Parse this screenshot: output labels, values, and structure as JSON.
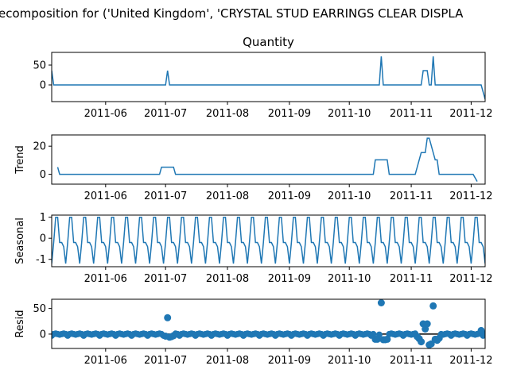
{
  "figure": {
    "suptitle": "ecomposition for ('United Kingdom', 'CRYSTAL STUD EARRINGS CLEAR DISPLA",
    "line_color": "#1f77b4",
    "zero_line_color": "#000000"
  },
  "chart_data": [
    {
      "type": "line",
      "title": "Quantity",
      "ylabel": "",
      "xlim": [
        "2011-05-05",
        "2011-12-08"
      ],
      "ylim": [
        -42,
        82
      ],
      "yticks": [
        0,
        50
      ],
      "xticks": [
        "2011-06",
        "2011-07",
        "2011-08",
        "2011-09",
        "2011-10",
        "2011-11",
        "2011-12"
      ],
      "grid": false,
      "points": [
        [
          "2011-05-05",
          36
        ],
        [
          "2011-05-06",
          0
        ],
        [
          "2011-07-01",
          0
        ],
        [
          "2011-07-02",
          36
        ],
        [
          "2011-07-03",
          0
        ],
        [
          "2011-10-16",
          0
        ],
        [
          "2011-10-17",
          72
        ],
        [
          "2011-10-18",
          0
        ],
        [
          "2011-11-06",
          0
        ],
        [
          "2011-11-07",
          36
        ],
        [
          "2011-11-09",
          36
        ],
        [
          "2011-11-10",
          0
        ],
        [
          "2011-11-11",
          0
        ],
        [
          "2011-11-12",
          72
        ],
        [
          "2011-11-13",
          0
        ],
        [
          "2011-12-06",
          0
        ],
        [
          "2011-12-08",
          -36
        ]
      ]
    },
    {
      "type": "line",
      "title": "",
      "ylabel": "Trend",
      "xlim": [
        "2011-05-05",
        "2011-12-08"
      ],
      "ylim": [
        -7,
        28
      ],
      "yticks": [
        0,
        20
      ],
      "xticks": [
        "2011-06",
        "2011-07",
        "2011-08",
        "2011-09",
        "2011-10",
        "2011-11",
        "2011-12"
      ],
      "grid": false,
      "points": [
        [
          "2011-05-08",
          5.1
        ],
        [
          "2011-05-09",
          0
        ],
        [
          "2011-06-28",
          0
        ],
        [
          "2011-06-29",
          5.1
        ],
        [
          "2011-07-05",
          5.1
        ],
        [
          "2011-07-06",
          0
        ],
        [
          "2011-10-13",
          0
        ],
        [
          "2011-10-14",
          10.3
        ],
        [
          "2011-10-20",
          10.3
        ],
        [
          "2011-10-21",
          0
        ],
        [
          "2011-11-03",
          0
        ],
        [
          "2011-11-04",
          5.1
        ],
        [
          "2011-11-06",
          15.4
        ],
        [
          "2011-11-08",
          15.4
        ],
        [
          "2011-11-09",
          25.7
        ],
        [
          "2011-11-10",
          25.7
        ],
        [
          "2011-11-13",
          10.3
        ],
        [
          "2011-11-14",
          10.3
        ],
        [
          "2011-11-15",
          0
        ],
        [
          "2011-12-02",
          0
        ],
        [
          "2011-12-04",
          -5.1
        ]
      ]
    },
    {
      "type": "line",
      "title": "",
      "ylabel": "Seasonal",
      "xlim": [
        "2011-05-05",
        "2011-12-08"
      ],
      "ylim": [
        -1.35,
        1.1
      ],
      "yticks": [
        -1,
        0,
        1
      ],
      "xticks": [
        "2011-06",
        "2011-07",
        "2011-08",
        "2011-09",
        "2011-10",
        "2011-11",
        "2011-12"
      ],
      "grid": false,
      "period_days": 7,
      "weekly_pattern": [
        -1.2,
        -0.2,
        1.0,
        1.0,
        -0.2,
        -0.2,
        -0.4
      ],
      "start_date": "2011-05-05"
    },
    {
      "type": "scatter",
      "title": "",
      "ylabel": "Resid",
      "xlim": [
        "2011-05-05",
        "2011-12-08"
      ],
      "ylim": [
        -28,
        68
      ],
      "yticks": [
        0,
        50
      ],
      "xticks": [
        "2011-06",
        "2011-07",
        "2011-08",
        "2011-09",
        "2011-10",
        "2011-11",
        "2011-12"
      ],
      "grid": false,
      "zero_line": true,
      "baseline_range": [
        "2011-05-05",
        "2011-12-08"
      ],
      "baseline_values": [
        -3,
        0,
        1,
        0,
        -1,
        0,
        1,
        0
      ],
      "points": [
        [
          "2011-07-02",
          32
        ],
        [
          "2011-07-01",
          -4
        ],
        [
          "2011-07-03",
          -6
        ],
        [
          "2011-07-04",
          -5
        ],
        [
          "2011-07-05",
          -3
        ],
        [
          "2011-10-14",
          -10
        ],
        [
          "2011-10-15",
          -10
        ],
        [
          "2011-10-17",
          61
        ],
        [
          "2011-10-18",
          -11
        ],
        [
          "2011-10-19",
          -11
        ],
        [
          "2011-10-20",
          -10
        ],
        [
          "2011-11-04",
          -5
        ],
        [
          "2011-11-05",
          -9
        ],
        [
          "2011-11-06",
          -15
        ],
        [
          "2011-11-07",
          20
        ],
        [
          "2011-11-08",
          10
        ],
        [
          "2011-11-09",
          20
        ],
        [
          "2011-11-10",
          -21
        ],
        [
          "2011-11-11",
          -19
        ],
        [
          "2011-11-12",
          55
        ],
        [
          "2011-11-13",
          -10
        ],
        [
          "2011-11-14",
          -12
        ],
        [
          "2011-11-15",
          -8
        ],
        [
          "2011-12-06",
          7
        ]
      ]
    }
  ]
}
